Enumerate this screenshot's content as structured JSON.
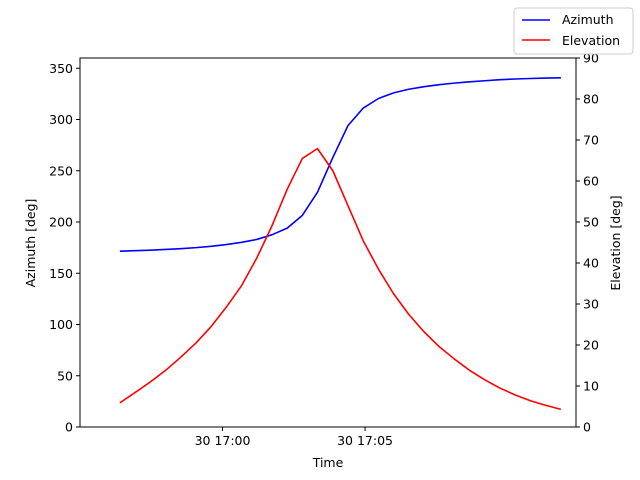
{
  "chart_data": {
    "type": "line",
    "xlabel": "Time",
    "x_ticks": [
      "30 17:00",
      "30 17:05"
    ],
    "x_range": [
      "17:00 - 5.0 min",
      "17:00 + 9.9 min"
    ],
    "left_axis": {
      "label": "Azimuth [deg]",
      "ylim": [
        0,
        360
      ],
      "ticks": [
        0,
        50,
        100,
        150,
        200,
        250,
        300,
        350
      ]
    },
    "right_axis": {
      "label": "Elevation [deg]",
      "ylim": [
        0,
        90
      ],
      "ticks": [
        0,
        10,
        20,
        30,
        40,
        50,
        60,
        70,
        80,
        90
      ]
    },
    "x_minutes_from_1700": [
      -3.6,
      -3.07,
      -2.53,
      -2.0,
      -1.47,
      -0.93,
      -0.4,
      0.13,
      0.67,
      1.2,
      1.73,
      2.27,
      2.8,
      3.33,
      3.87,
      4.4,
      4.93,
      5.47,
      6.0,
      6.53,
      7.07,
      7.6,
      8.13,
      8.67,
      9.2,
      9.73,
      10.27,
      10.8,
      11.33,
      11.87
    ],
    "series": [
      {
        "name": "Azimuth",
        "axis": "left",
        "color": "#0000ff",
        "values": [
          171.5,
          172.0,
          172.5,
          173.2,
          174.0,
          175.0,
          176.3,
          178.0,
          180.2,
          183.0,
          187.5,
          194.0,
          206.5,
          229.0,
          263.0,
          294.0,
          311.0,
          320.5,
          326.0,
          329.5,
          332.0,
          334.0,
          335.5,
          336.8,
          337.8,
          338.8,
          339.5,
          340.0,
          340.4,
          340.7
        ]
      },
      {
        "name": "Elevation",
        "axis": "right",
        "color": "#ff0000",
        "values": [
          5.9,
          8.4,
          11.0,
          13.8,
          17.0,
          20.5,
          24.5,
          29.2,
          34.5,
          41.2,
          49.0,
          58.0,
          65.5,
          67.9,
          62.5,
          54.0,
          45.5,
          38.5,
          32.5,
          27.5,
          23.2,
          19.6,
          16.6,
          13.8,
          11.5,
          9.5,
          7.8,
          6.4,
          5.3,
          4.3
        ]
      }
    ],
    "legend": {
      "placement": "top-right",
      "entries": [
        "Azimuth",
        "Elevation"
      ]
    },
    "grid": false
  }
}
